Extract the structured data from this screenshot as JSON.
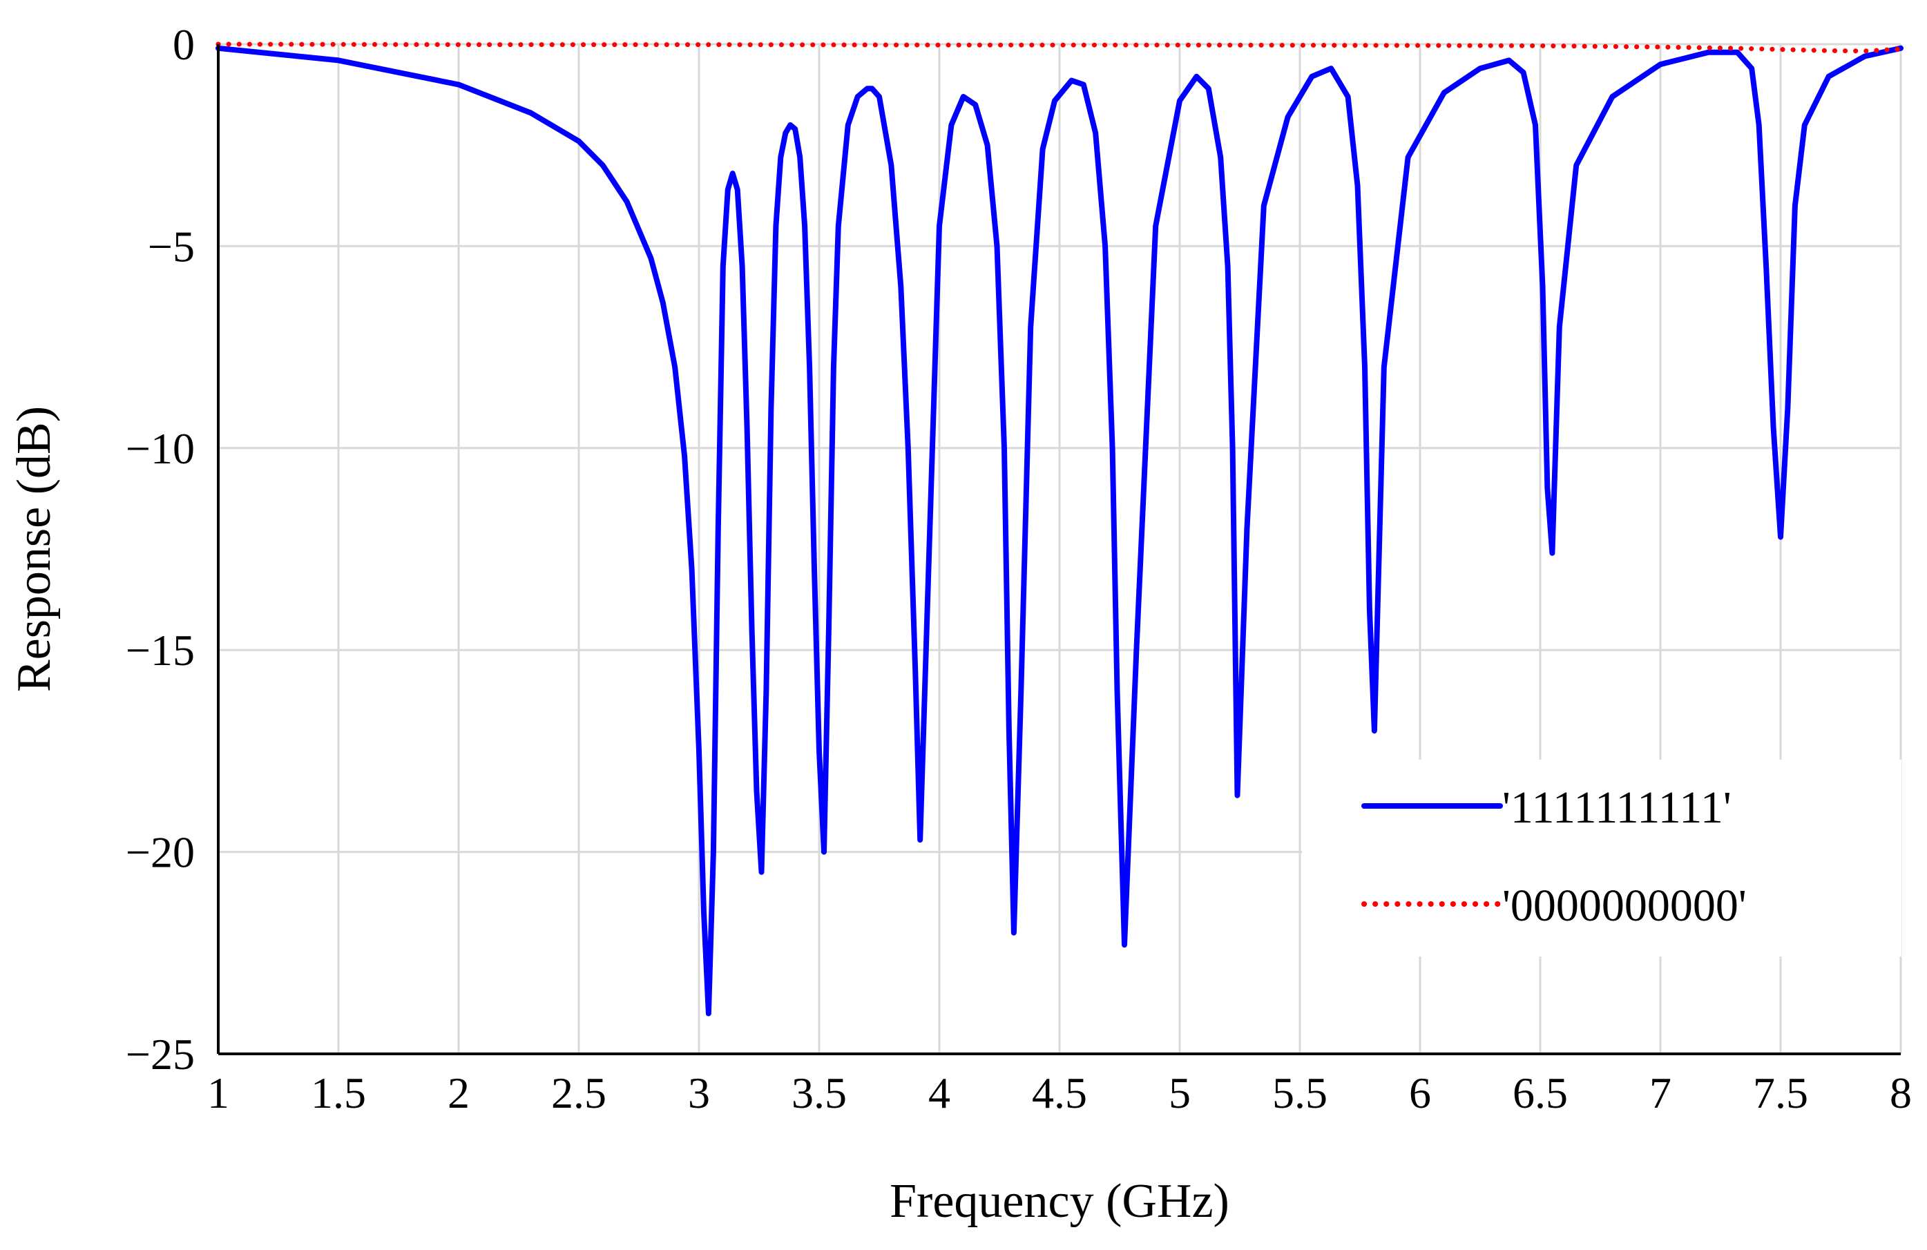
{
  "chart_data": {
    "type": "line",
    "title": "",
    "xlabel": "Frequency (GHz)",
    "ylabel": "Response (dB)",
    "xlim": [
      1,
      8
    ],
    "ylim": [
      -25,
      0
    ],
    "grid": true,
    "xticks": [
      1,
      1.5,
      2,
      2.5,
      3,
      3.5,
      4,
      4.5,
      5,
      5.5,
      6,
      6.5,
      7,
      7.5,
      8
    ],
    "xtick_labels": [
      "1",
      "1.5",
      "2",
      "2.5",
      "3",
      "3.5",
      "4",
      "4.5",
      "5",
      "5.5",
      "6",
      "6.5",
      "7",
      "7.5",
      "8"
    ],
    "yticks": [
      0,
      -5,
      -10,
      -15,
      -20,
      -25
    ],
    "ytick_labels": [
      "0",
      "−5",
      "−10",
      "−15",
      "−20",
      "−25"
    ],
    "legend_position": "lower-right",
    "series": [
      {
        "name": "'1111111111'",
        "color": "#0000ff",
        "style": "solid",
        "x": [
          1.0,
          1.5,
          2.0,
          2.3,
          2.5,
          2.6,
          2.7,
          2.8,
          2.85,
          2.9,
          2.94,
          2.97,
          3.0,
          3.02,
          3.04,
          3.06,
          3.08,
          3.1,
          3.12,
          3.14,
          3.16,
          3.18,
          3.2,
          3.22,
          3.24,
          3.26,
          3.28,
          3.3,
          3.32,
          3.34,
          3.36,
          3.38,
          3.4,
          3.42,
          3.44,
          3.46,
          3.48,
          3.5,
          3.52,
          3.54,
          3.56,
          3.58,
          3.62,
          3.66,
          3.7,
          3.72,
          3.75,
          3.8,
          3.84,
          3.87,
          3.9,
          3.92,
          3.95,
          4.0,
          4.05,
          4.1,
          4.15,
          4.2,
          4.24,
          4.27,
          4.29,
          4.31,
          4.34,
          4.38,
          4.43,
          4.48,
          4.55,
          4.6,
          4.65,
          4.69,
          4.72,
          4.74,
          4.77,
          4.82,
          4.9,
          5.0,
          5.07,
          5.12,
          5.17,
          5.2,
          5.22,
          5.24,
          5.28,
          5.35,
          5.45,
          5.55,
          5.63,
          5.7,
          5.74,
          5.77,
          5.79,
          5.81,
          5.85,
          5.95,
          6.1,
          6.25,
          6.37,
          6.43,
          6.48,
          6.51,
          6.53,
          6.55,
          6.58,
          6.65,
          6.8,
          7.0,
          7.2,
          7.32,
          7.38,
          7.41,
          7.44,
          7.47,
          7.5,
          7.53,
          7.56,
          7.6,
          7.7,
          7.85,
          8.0
        ],
        "y": [
          -0.1,
          -0.4,
          -1.0,
          -1.7,
          -2.4,
          -3.0,
          -3.9,
          -5.3,
          -6.4,
          -8.0,
          -10.2,
          -13.0,
          -17.5,
          -21.5,
          -24.0,
          -20.0,
          -12.0,
          -5.5,
          -3.6,
          -3.2,
          -3.6,
          -5.5,
          -9.5,
          -14.5,
          -18.5,
          -20.5,
          -16.0,
          -9.0,
          -4.5,
          -2.8,
          -2.2,
          -2.0,
          -2.1,
          -2.8,
          -4.5,
          -8.0,
          -13.0,
          -17.5,
          -20.0,
          -14.5,
          -8.0,
          -4.5,
          -2.0,
          -1.3,
          -1.1,
          -1.1,
          -1.3,
          -3.0,
          -6.0,
          -10.0,
          -15.5,
          -19.7,
          -14.0,
          -4.5,
          -2.0,
          -1.3,
          -1.5,
          -2.5,
          -5.0,
          -10.0,
          -17.0,
          -22.0,
          -16.0,
          -7.0,
          -2.6,
          -1.4,
          -0.9,
          -1.0,
          -2.2,
          -5.0,
          -10.0,
          -16.0,
          -22.3,
          -15.0,
          -4.5,
          -1.4,
          -0.8,
          -1.1,
          -2.8,
          -5.5,
          -10.0,
          -18.6,
          -12.0,
          -4.0,
          -1.8,
          -0.8,
          -0.6,
          -1.3,
          -3.5,
          -8.0,
          -14.0,
          -17.0,
          -8.0,
          -2.8,
          -1.2,
          -0.6,
          -0.4,
          -0.7,
          -2.0,
          -6.0,
          -11.0,
          -12.6,
          -7.0,
          -3.0,
          -1.3,
          -0.5,
          -0.2,
          -0.2,
          -0.6,
          -2.0,
          -5.5,
          -9.5,
          -12.2,
          -9.0,
          -4.0,
          -2.0,
          -0.8,
          -0.3,
          -0.1
        ]
      },
      {
        "name": "'0000000000'",
        "color": "#ff0000",
        "style": "dotted",
        "x": [
          1.0,
          2.0,
          3.0,
          4.0,
          5.0,
          6.0,
          6.5,
          7.0,
          7.3,
          7.5,
          7.7,
          7.85,
          8.0
        ],
        "y": [
          0.0,
          -0.01,
          -0.01,
          -0.02,
          -0.02,
          -0.03,
          -0.04,
          -0.07,
          -0.1,
          -0.13,
          -0.16,
          -0.17,
          -0.12
        ]
      }
    ]
  }
}
